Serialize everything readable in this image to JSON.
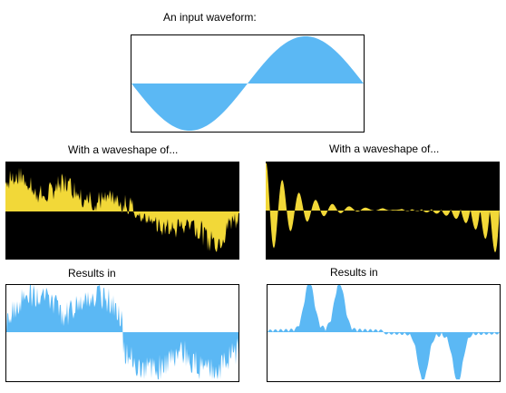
{
  "labels": {
    "input": "An input waveform:",
    "shape_left": "With a waveshape of...",
    "shape_right": "With a waveshape of...",
    "results_left": "Results in",
    "results_right": "Results in"
  },
  "colors": {
    "input_fill": "#5bb8f4",
    "shape_fill": "#f2d838",
    "result_fill": "#5bb8f4",
    "panel_bg_light": "#ffffff",
    "panel_bg_dark": "#000000"
  }
}
